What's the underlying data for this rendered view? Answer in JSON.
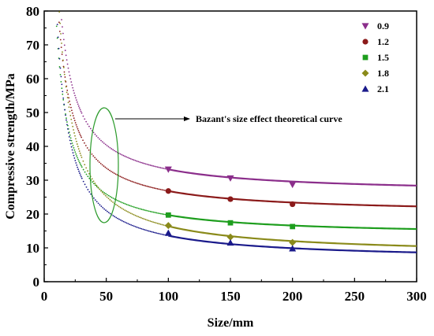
{
  "chart_data": {
    "type": "scatter",
    "xlabel": "Size/mm",
    "ylabel": "Compressive strength/MPa",
    "xlim": [
      0,
      300
    ],
    "ylim": [
      0,
      80
    ],
    "xticks": [
      0,
      50,
      100,
      150,
      200,
      250,
      300
    ],
    "yticks": [
      0,
      10,
      20,
      30,
      40,
      50,
      60,
      70,
      80
    ],
    "grid": false,
    "legend_position": "top-right",
    "annotation": "Bazant's size effect theoretical curve",
    "series": [
      {
        "name": "0.9",
        "marker": "triangle-down",
        "color": "#8B2E8B",
        "x": [
          100,
          150,
          200
        ],
        "y": [
          33.2,
          30.6,
          28.7
        ],
        "curve": {
          "a": 26.0,
          "b": 720,
          "min_x": 14
        }
      },
      {
        "name": "1.2",
        "marker": "circle",
        "color": "#8B1A1A",
        "x": [
          100,
          150,
          200
        ],
        "y": [
          26.8,
          24.4,
          22.9
        ],
        "curve": {
          "a": 20.0,
          "b": 680,
          "min_x": 12
        }
      },
      {
        "name": "1.5",
        "marker": "square",
        "color": "#1E9E1E",
        "x": [
          100,
          150,
          200
        ],
        "y": [
          19.7,
          17.4,
          16.3
        ],
        "curve": {
          "a": 13.5,
          "b": 620,
          "min_x": 10
        }
      },
      {
        "name": "1.8",
        "marker": "diamond",
        "color": "#8A8A1A",
        "x": [
          100,
          150,
          200
        ],
        "y": [
          16.6,
          13.2,
          11.6
        ],
        "curve": {
          "a": 7.6,
          "b": 880,
          "min_x": 11
        }
      },
      {
        "name": "2.1",
        "marker": "triangle-up",
        "color": "#1A1A8B",
        "x": [
          100,
          150,
          200
        ],
        "y": [
          14.4,
          11.5,
          9.8
        ],
        "curve": {
          "a": 6.2,
          "b": 740,
          "min_x": 10
        }
      }
    ]
  }
}
